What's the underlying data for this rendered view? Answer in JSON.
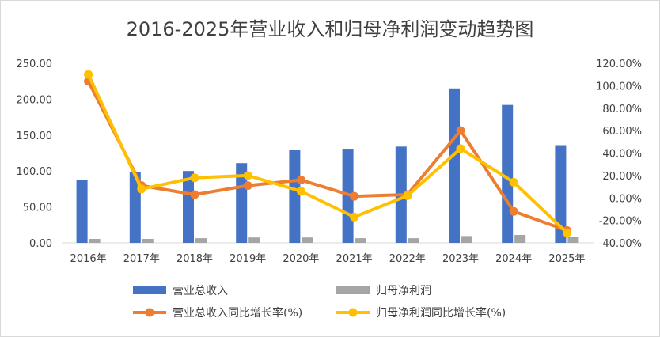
{
  "chart_data": {
    "type": "bar",
    "title": "2016-2025年营业收入和归母净利润变动趋势图",
    "categories": [
      "2016年",
      "2017年",
      "2018年",
      "2019年",
      "2020年",
      "2021年",
      "2022年",
      "2023年",
      "2024年",
      "2025年"
    ],
    "y_left": {
      "min": 0,
      "max": 250,
      "step": 50,
      "tick_labels": [
        "0.00",
        "50.00",
        "100.00",
        "150.00",
        "200.00",
        "250.00"
      ]
    },
    "y_right": {
      "min": -40,
      "max": 120,
      "step": 20,
      "tick_labels": [
        "-40.00%",
        "-20.00%",
        "0.00%",
        "20.00%",
        "40.00%",
        "60.00%",
        "80.00%",
        "100.00%",
        "120.00%"
      ]
    },
    "series": [
      {
        "name": "营业总收入",
        "type": "bar",
        "axis": "left",
        "color": "#4472C4",
        "values": [
          88,
          98,
          100,
          111,
          129,
          131,
          134,
          215,
          192,
          136
        ]
      },
      {
        "name": "归母净利润",
        "type": "bar",
        "axis": "left",
        "color": "#A5A5A5",
        "values": [
          5.5,
          5.5,
          6.5,
          7.5,
          7.5,
          6.5,
          6.5,
          9.5,
          11,
          8
        ]
      },
      {
        "name": "营业总收入同比增长率(%)",
        "type": "line",
        "axis": "right",
        "color": "#ED7D31",
        "values": [
          104,
          11,
          3,
          11,
          16,
          1.5,
          3,
          60,
          -12,
          -29
        ]
      },
      {
        "name": "归母净利润同比增长率(%)",
        "type": "line",
        "axis": "right",
        "color": "#FFC000",
        "values": [
          110,
          8,
          18,
          20,
          6,
          -17,
          2,
          44,
          14,
          -31
        ]
      }
    ],
    "legend_position": "bottom",
    "grid": false
  }
}
